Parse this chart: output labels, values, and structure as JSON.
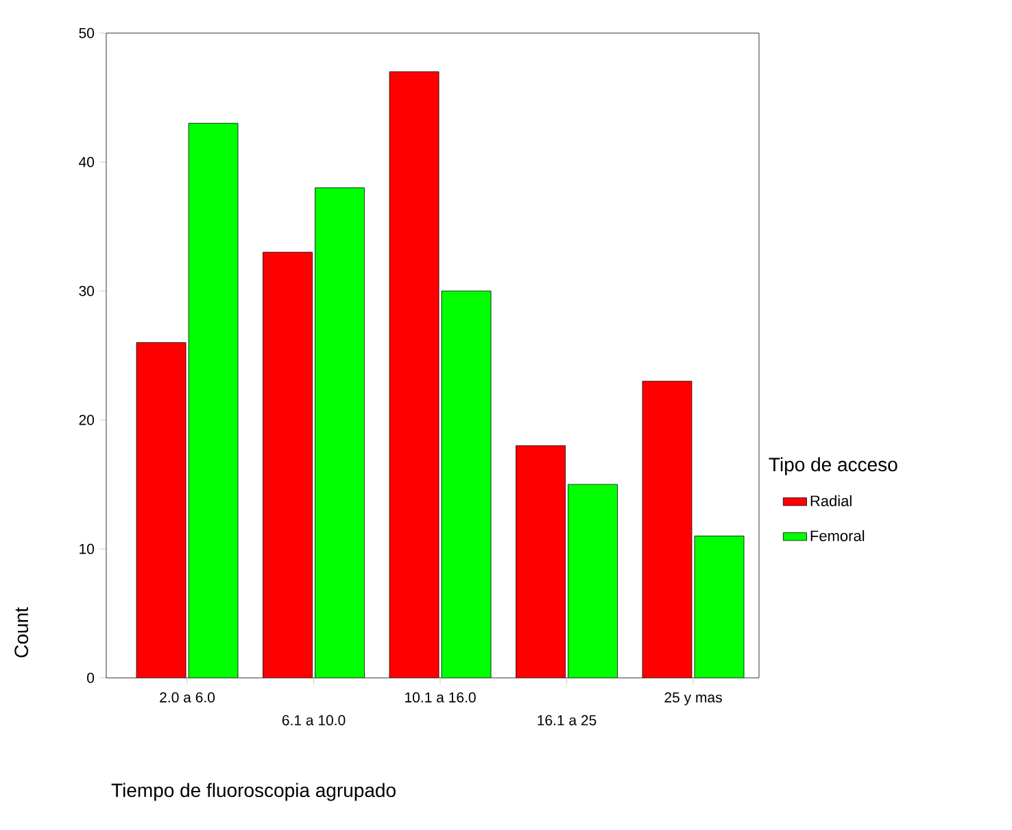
{
  "chart_data": {
    "type": "bar",
    "xlabel": "Tiempo de fluoroscopia agrupado",
    "ylabel": "Count",
    "legend_title": "Tipo de acceso",
    "legend": "right",
    "categories": [
      "2.0 a 6.0",
      "6.1 a 10.0",
      "10.1 a 16.0",
      "16.1 a 25",
      "25 y mas"
    ],
    "series": [
      {
        "name": "Radial",
        "color": "#ff0000",
        "values": [
          26,
          33,
          47,
          18,
          23
        ]
      },
      {
        "name": "Femoral",
        "color": "#00ff00",
        "values": [
          43,
          38,
          30,
          15,
          11
        ]
      }
    ],
    "ylim": [
      0,
      50
    ],
    "yticks": [
      0,
      10,
      20,
      30,
      40,
      50
    ],
    "grid": false
  }
}
